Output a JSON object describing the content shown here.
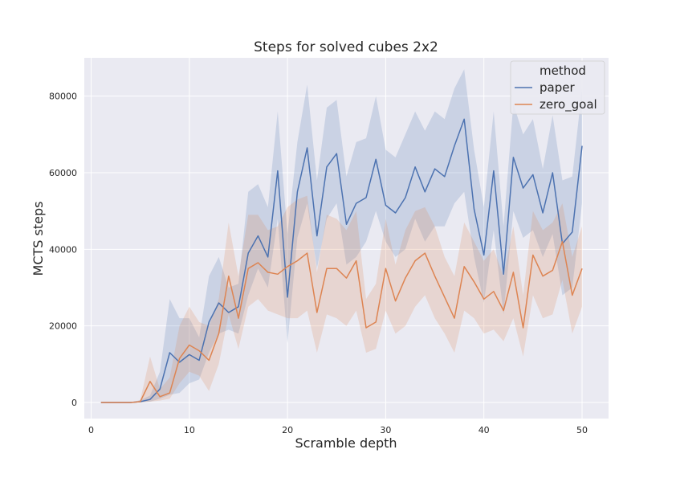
{
  "chart_data": {
    "type": "line",
    "title": "Steps for solved cubes 2x2",
    "xlabel": "Scramble depth",
    "ylabel": "MCTS steps",
    "xlim": [
      -0.7,
      52.7
    ],
    "ylim": [
      -4200,
      90000
    ],
    "xticks": [
      0,
      10,
      20,
      30,
      40,
      50
    ],
    "yticks": [
      0,
      20000,
      40000,
      60000,
      80000
    ],
    "legend": {
      "title": "method",
      "placement": "top-right"
    },
    "colors": {
      "background": "#eaeaf2",
      "grid": "#ffffff",
      "paper": "#4c72b0",
      "zero_goal": "#dd8452"
    },
    "x": [
      1,
      2,
      3,
      4,
      5,
      6,
      7,
      8,
      9,
      10,
      11,
      12,
      13,
      14,
      15,
      16,
      17,
      18,
      19,
      20,
      21,
      22,
      23,
      24,
      25,
      26,
      27,
      28,
      29,
      30,
      31,
      32,
      33,
      34,
      35,
      36,
      37,
      38,
      39,
      40,
      41,
      42,
      43,
      44,
      45,
      46,
      47,
      48,
      49,
      50
    ],
    "series": [
      {
        "name": "paper",
        "values": [
          0,
          0,
          0,
          0,
          200,
          800,
          3500,
          13000,
          10500,
          12500,
          11000,
          21000,
          26000,
          23500,
          25000,
          39000,
          43500,
          38000,
          60500,
          27500,
          55000,
          66500,
          43500,
          61500,
          65000,
          46500,
          52000,
          53500,
          63500,
          51500,
          49500,
          53500,
          61500,
          55000,
          61000,
          59000,
          67000,
          74000,
          50500,
          38500,
          60500,
          33500,
          64000,
          56000,
          59500,
          49500,
          60000,
          41500,
          44500,
          67000
        ],
        "lower": [
          0,
          0,
          0,
          0,
          0,
          200,
          1000,
          2000,
          2500,
          5000,
          6000,
          13000,
          18000,
          19000,
          18000,
          28000,
          35000,
          30000,
          48000,
          15500,
          43000,
          52000,
          35000,
          48000,
          52000,
          36000,
          38000,
          42000,
          50000,
          42000,
          38000,
          40000,
          48000,
          42000,
          46000,
          46000,
          52000,
          55000,
          38000,
          26000,
          45000,
          23000,
          50000,
          43000,
          45000,
          38000,
          44000,
          28000,
          30000,
          52000
        ],
        "upper": [
          0,
          0,
          0,
          0,
          600,
          1800,
          8000,
          27000,
          22000,
          22000,
          17000,
          33000,
          38000,
          30000,
          31000,
          55000,
          57000,
          51000,
          76000,
          44000,
          68000,
          83000,
          58000,
          77000,
          79000,
          59000,
          68000,
          69000,
          80000,
          66000,
          64000,
          70000,
          76000,
          71000,
          76000,
          74000,
          82000,
          87000,
          66000,
          51000,
          76000,
          46000,
          78000,
          70000,
          74000,
          61000,
          75000,
          58000,
          59000,
          82000
        ]
      },
      {
        "name": "zero_goal",
        "values": [
          0,
          0,
          0,
          0,
          200,
          5500,
          1500,
          2500,
          11500,
          15000,
          13500,
          11000,
          18000,
          33000,
          22000,
          35000,
          36500,
          34000,
          33500,
          35500,
          37000,
          39000,
          23500,
          35000,
          35000,
          32500,
          37000,
          19500,
          21000,
          35000,
          26500,
          32500,
          37000,
          39000,
          33000,
          27500,
          22000,
          35500,
          31500,
          27000,
          29000,
          24000,
          34000,
          19500,
          38500,
          33000,
          34500,
          42000,
          28000,
          35000
        ],
        "lower": [
          0,
          0,
          0,
          0,
          0,
          200,
          500,
          1000,
          5000,
          8000,
          7000,
          3000,
          10000,
          23000,
          14000,
          25000,
          27000,
          24000,
          23000,
          22000,
          22000,
          24000,
          13000,
          23000,
          22000,
          20000,
          24000,
          13000,
          14000,
          24000,
          18000,
          20000,
          25000,
          28000,
          22000,
          18000,
          13000,
          24000,
          22000,
          18000,
          19000,
          16000,
          22000,
          12000,
          28000,
          22000,
          23000,
          32000,
          18000,
          25000
        ],
        "upper": [
          0,
          0,
          0,
          0,
          600,
          12000,
          3500,
          6500,
          20000,
          25000,
          21000,
          20000,
          27000,
          47000,
          33000,
          49000,
          49000,
          45000,
          46000,
          51000,
          53000,
          54000,
          34000,
          49000,
          48000,
          45000,
          50000,
          27000,
          31000,
          48000,
          36000,
          45000,
          50000,
          51000,
          46000,
          38000,
          33000,
          47000,
          42000,
          37000,
          40000,
          33000,
          46000,
          28000,
          50000,
          45000,
          47000,
          52000,
          38000,
          46000
        ]
      }
    ]
  }
}
